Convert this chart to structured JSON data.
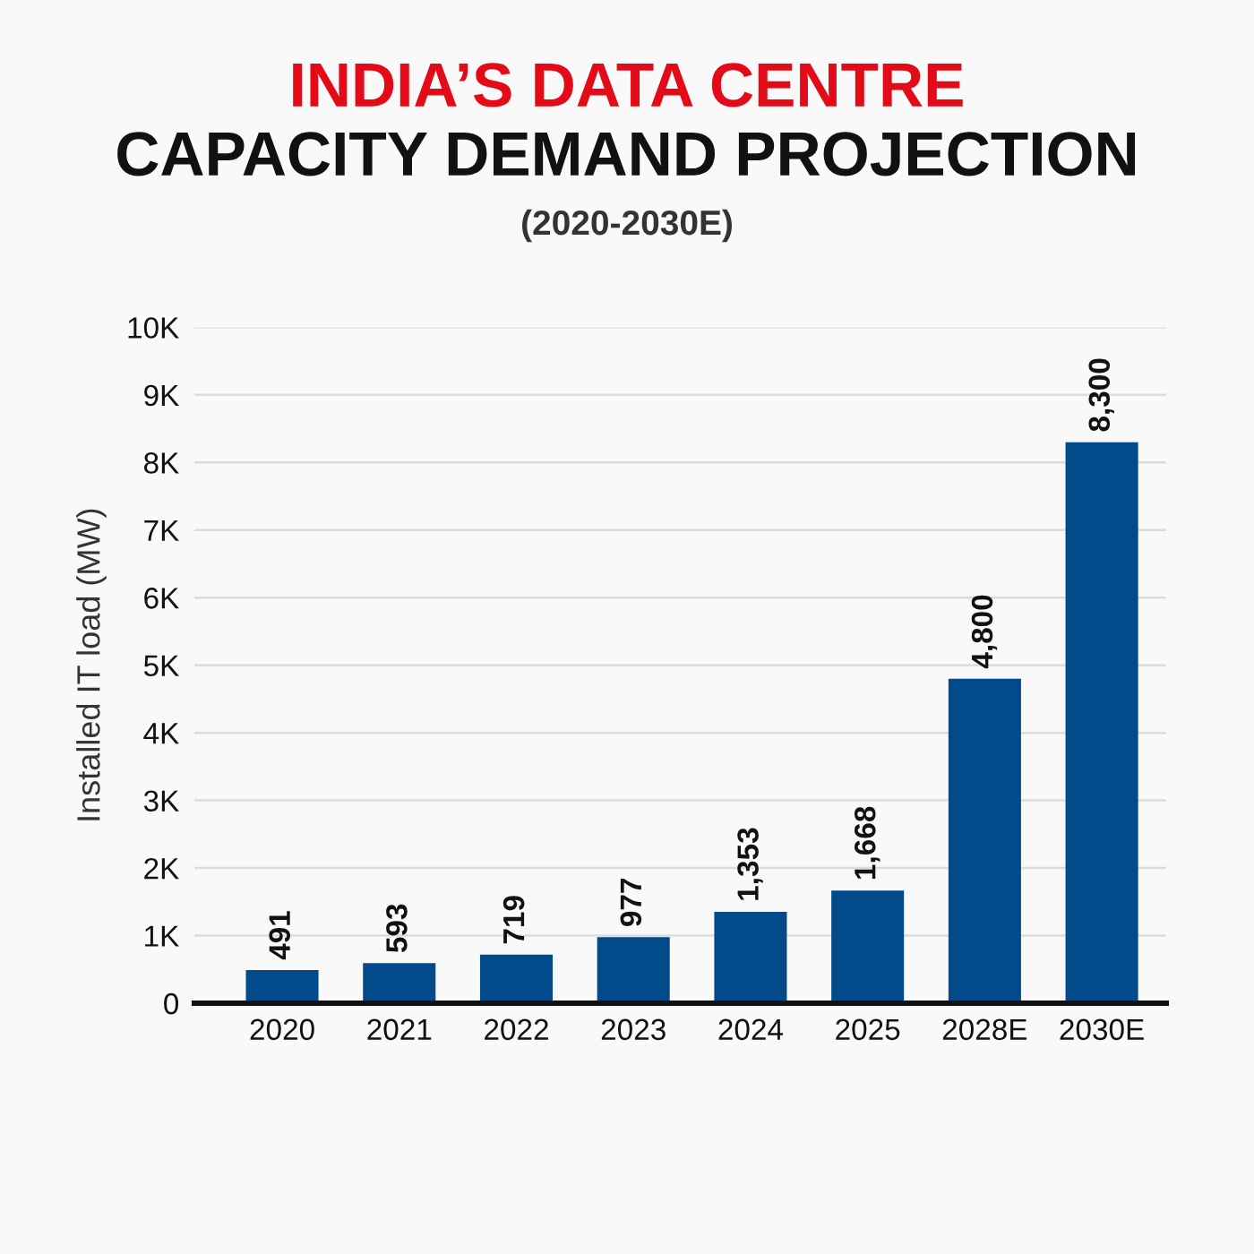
{
  "chart_data": {
    "type": "bar",
    "title": "INDIA’S DATA CENTRE\nCAPACITY DEMAND PROJECTION",
    "subtitle": "(2020-2030E)",
    "ylabel": "Installed IT load (MW)",
    "categories": [
      "2020",
      "2021",
      "2022",
      "2023",
      "2024",
      "2025",
      "2028E",
      "2030E"
    ],
    "values": [
      491,
      593,
      719,
      977,
      1353,
      1668,
      4800,
      8300
    ],
    "value_labels": [
      "491",
      "593",
      "719",
      "977",
      "1,353",
      "1,668",
      "4,800",
      "8,300"
    ],
    "color": "#034a8a",
    "ylim": [
      0,
      10000
    ],
    "yticks": [
      0,
      {
        "value": 1000,
        "label": "1K"
      },
      {
        "value": 2000,
        "label": "2K"
      },
      {
        "value": 3000,
        "label": "3K"
      },
      {
        "value": 4000,
        "label": "4K"
      },
      {
        "value": 5000,
        "label": "5K"
      },
      {
        "value": 6000,
        "label": "6K"
      },
      {
        "value": 7000,
        "label": "7K"
      },
      {
        "value": 8000,
        "label": "8K"
      },
      {
        "value": 9000,
        "label": "9K"
      },
      {
        "value": 10000,
        "label": "10K"
      }
    ],
    "grid": "y"
  }
}
